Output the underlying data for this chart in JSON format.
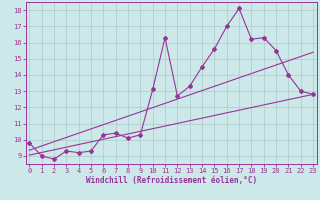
{
  "xlabel": "Windchill (Refroidissement éolien,°C)",
  "bg_color": "#cce8e8",
  "line_color": "#993399",
  "grid_color": "#aacccc",
  "x_ticks": [
    0,
    1,
    2,
    3,
    4,
    5,
    6,
    7,
    8,
    9,
    10,
    11,
    12,
    13,
    14,
    15,
    16,
    17,
    18,
    19,
    20,
    21,
    22,
    23
  ],
  "y_ticks": [
    9,
    10,
    11,
    12,
    13,
    14,
    15,
    16,
    17,
    18
  ],
  "xlim": [
    -0.3,
    23.3
  ],
  "ylim": [
    8.5,
    18.5
  ],
  "line1_x": [
    0,
    1,
    2,
    3,
    4,
    5,
    6,
    7,
    8,
    9,
    10,
    11,
    12,
    13,
    14,
    15,
    16,
    17,
    18,
    19,
    20,
    21,
    22,
    23
  ],
  "line1_y": [
    9.8,
    9.0,
    8.8,
    9.3,
    9.2,
    9.3,
    10.3,
    10.4,
    10.1,
    10.3,
    13.1,
    16.3,
    12.7,
    13.3,
    14.5,
    15.6,
    17.0,
    18.1,
    16.2,
    16.3,
    15.5,
    14.0,
    13.0,
    12.8
  ],
  "trend1_x0": 0,
  "trend1_y0": 9.05,
  "trend1_x1": 23,
  "trend1_y1": 12.8,
  "trend2_x0": 0,
  "trend2_y0": 9.35,
  "trend2_x1": 23,
  "trend2_y1": 15.4
}
